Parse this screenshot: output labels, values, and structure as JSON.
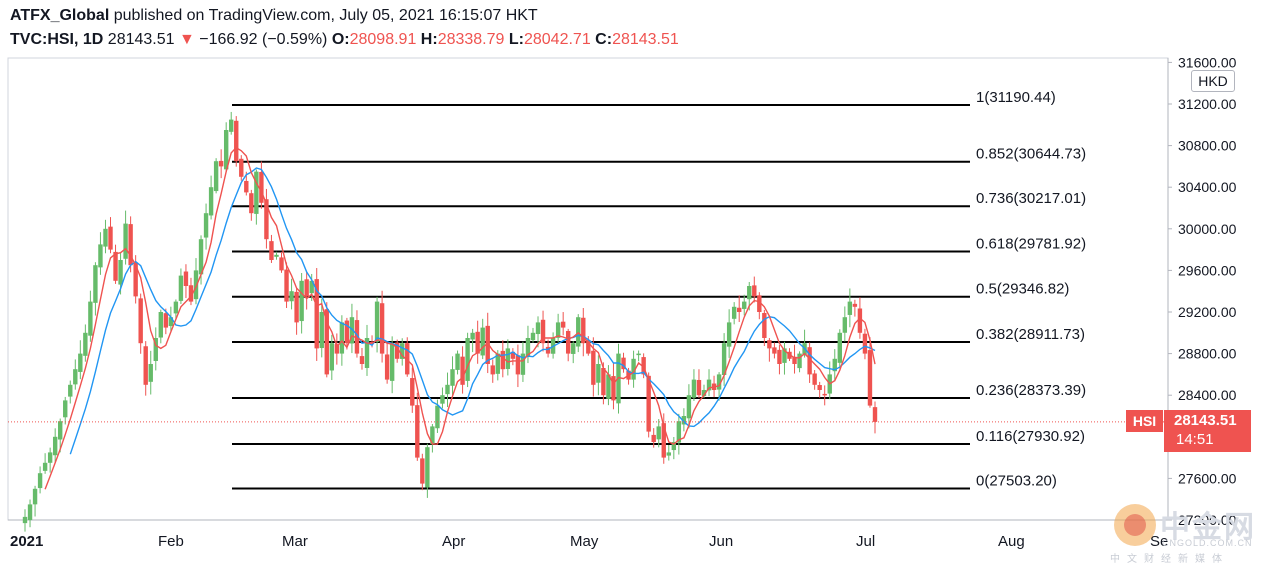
{
  "header": {
    "line1_user": "ATFX_Global",
    "line1_rest": " published on TradingView.com, July 05, 2021 16:15:07 HKT",
    "symbol": "TVC:HSI, 1D",
    "last": "28143.51",
    "arrow": "▼",
    "change": "−166.92 (−0.59%)",
    "o_label": "O:",
    "o_value": "28098.91",
    "h_label": "H:",
    "h_value": "28338.79",
    "l_label": "L:",
    "l_value": "28042.71",
    "c_label": "C:",
    "c_value": "28143.51"
  },
  "axis": {
    "currency": "HKD",
    "price_tag": "28143.51",
    "price_tag_time": "14:51",
    "symbol_tag": "HSI"
  },
  "colors": {
    "up": "#66bb6a",
    "down": "#ef5350",
    "ma_fast": "#ef5350",
    "ma_slow": "#2196f3",
    "fib_line": "#000000"
  },
  "watermark": {
    "cn": "中金网",
    "en": "CNGOLD.COM.CN",
    "sub": "中文财经新媒体"
  },
  "chart_data": {
    "type": "candlestick",
    "y_range": [
      27200,
      31700
    ],
    "y_ticks": [
      "31600.00",
      "31200.00",
      "30800.00",
      "30400.00",
      "30000.00",
      "29600.00",
      "29200.00",
      "28800.00",
      "28400.00",
      "28000.00",
      "27600.00",
      "27200.00"
    ],
    "y_tick_values": [
      31600,
      31200,
      30800,
      30400,
      30000,
      29600,
      29200,
      28800,
      28400,
      28000,
      27600,
      27200
    ],
    "x_labels": [
      "2021",
      "Feb",
      "Mar",
      "Apr",
      "May",
      "Jun",
      "Jul",
      "Aug",
      "Se"
    ],
    "fibonacci": [
      {
        "label": "1(31190.44)",
        "value": 31190.44
      },
      {
        "label": "0.852(30644.73)",
        "value": 30644.73
      },
      {
        "label": "0.736(30217.01)",
        "value": 30217.01
      },
      {
        "label": "0.618(29781.92)",
        "value": 29781.92
      },
      {
        "label": "0.5(29346.82)",
        "value": 29346.82
      },
      {
        "label": "0.382(28911.73)",
        "value": 28911.73
      },
      {
        "label": "0.236(28373.39)",
        "value": 28373.39
      },
      {
        "label": "0.116(27930.92)",
        "value": 27930.92
      },
      {
        "label": "0(27503.20)",
        "value": 27503.2
      }
    ],
    "close_series": [
      27230,
      27350,
      27500,
      27650,
      27750,
      27850,
      28000,
      28150,
      28350,
      28500,
      28650,
      28800,
      29000,
      29300,
      29650,
      29850,
      30000,
      29800,
      29500,
      29700,
      30050,
      29650,
      29350,
      28900,
      28500,
      28700,
      28950,
      29200,
      29050,
      29150,
      29300,
      29550,
      29450,
      29300,
      29600,
      29900,
      30150,
      30400,
      30650,
      30600,
      30950,
      31050,
      30650,
      30500,
      30350,
      30150,
      30550,
      30250,
      29900,
      29700,
      29750,
      29600,
      29300,
      29400,
      29100,
      29500,
      29350,
      29500,
      28850,
      29200,
      28600,
      28900,
      28800,
      29100,
      28900,
      29150,
      28800,
      28700,
      28950,
      28900,
      29300,
      28800,
      28550,
      28900,
      28750,
      28900,
      28600,
      28300,
      27800,
      27550,
      27900,
      28100,
      28300,
      28400,
      28500,
      28650,
      28800,
      28500,
      28950,
      29000,
      28800,
      29050,
      28700,
      28600,
      28800,
      28650,
      28850,
      28750,
      28600,
      28800,
      28950,
      29000,
      29100,
      28900,
      28800,
      28950,
      29100,
      29050,
      28800,
      28900,
      29150,
      28900,
      28800,
      28500,
      28700,
      28400,
      28600,
      28350,
      28800,
      28650,
      28550,
      28750,
      28800,
      28600,
      28050,
      27950,
      28100,
      27800,
      27850,
      27950,
      28150,
      28200,
      28400,
      28550,
      28400,
      28450,
      28550,
      28450,
      28600,
      28900,
      29100,
      29250,
      29200,
      29300,
      29450,
      29350,
      29200,
      28950,
      28850,
      28800,
      28700,
      28850,
      28750,
      28700,
      28800,
      28900,
      28600,
      28500,
      28450,
      28400,
      28600,
      28750,
      29000,
      29150,
      29300,
      29250,
      29000,
      28800,
      28300,
      28143.51
    ]
  }
}
